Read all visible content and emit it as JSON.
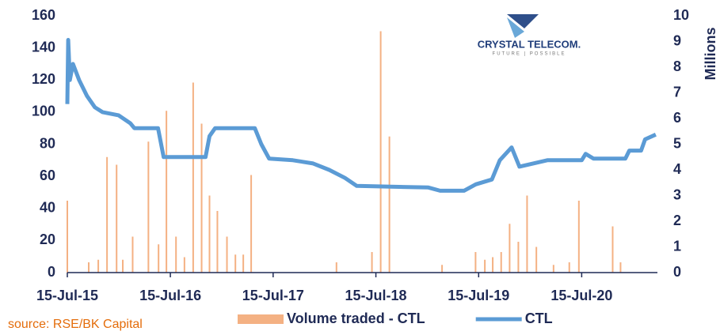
{
  "chart_data": {
    "type": "bar-line",
    "logo": {
      "name": "CRYSTAL TELECOM.",
      "tagline": "FUTURE | POSSIBLE"
    },
    "source": "source: RSE/BK Capital",
    "y2_label": "Millions",
    "xlim": [
      "2015-07-15",
      "2021-04-10"
    ],
    "xticks": [
      {
        "value": "2015-07-15",
        "label": "15-Jul-15"
      },
      {
        "value": "2016-07-15",
        "label": "15-Jul-16"
      },
      {
        "value": "2017-07-15",
        "label": "15-Jul-17"
      },
      {
        "value": "2018-07-15",
        "label": "15-Jul-18"
      },
      {
        "value": "2019-07-15",
        "label": "15-Jul-19"
      },
      {
        "value": "2020-07-15",
        "label": "15-Jul-20"
      }
    ],
    "ylim": [
      0,
      160
    ],
    "yticks": [
      0,
      20,
      40,
      60,
      80,
      100,
      120,
      140,
      160
    ],
    "y2lim": [
      0,
      10
    ],
    "y2ticks": [
      0,
      1,
      2,
      3,
      4,
      5,
      6,
      7,
      8,
      9,
      10
    ],
    "series": [
      {
        "name": "Volume traded - CTL",
        "type": "bar",
        "axis": "y2",
        "color": "#f4b183",
        "x": [
          "2015-07-15",
          "2015-09-29",
          "2015-11-02",
          "2015-12-03",
          "2016-01-06",
          "2016-01-28",
          "2016-03-03",
          "2016-04-28",
          "2016-06-03",
          "2016-07-01",
          "2016-08-04",
          "2016-09-03",
          "2016-10-04",
          "2016-11-03",
          "2016-12-01",
          "2016-12-29",
          "2017-02-01",
          "2017-03-03",
          "2017-03-31",
          "2017-04-28",
          "2018-02-25",
          "2018-07-01",
          "2018-08-01",
          "2018-09-01",
          "2019-03-07",
          "2019-07-04",
          "2019-08-06",
          "2019-09-03",
          "2019-10-03",
          "2019-11-02",
          "2019-12-03",
          "2020-01-03",
          "2020-02-05",
          "2020-04-06",
          "2020-06-01",
          "2020-07-05",
          "2020-11-02",
          "2020-11-30"
        ],
        "values": [
          2.8,
          0.4,
          0.5,
          4.5,
          4.2,
          0.5,
          1.4,
          5.1,
          1.1,
          6.3,
          1.4,
          0.6,
          7.4,
          5.8,
          3.0,
          2.4,
          1.4,
          0.7,
          0.7,
          3.8,
          0.4,
          0.8,
          9.4,
          5.3,
          0.3,
          0.8,
          0.5,
          0.6,
          0.8,
          1.9,
          1.2,
          3.0,
          1.0,
          0.3,
          0.4,
          2.8,
          1.8,
          0.4
        ]
      },
      {
        "name": "CTL",
        "type": "line",
        "color": "#5b9bd5",
        "x": [
          "2015-07-15",
          "2015-07-18",
          "2015-07-24",
          "2015-08-04",
          "2015-08-26",
          "2015-09-23",
          "2015-10-21",
          "2015-11-17",
          "2016-01-13",
          "2016-02-24",
          "2016-03-09",
          "2016-06-01",
          "2016-06-21",
          "2016-11-17",
          "2016-12-01",
          "2016-12-21",
          "2017-05-11",
          "2017-06-03",
          "2017-07-01",
          "2017-09-23",
          "2017-12-04",
          "2018-01-30",
          "2018-03-27",
          "2018-05-08",
          "2019-01-17",
          "2019-02-28",
          "2019-05-24",
          "2019-07-05",
          "2019-08-31",
          "2019-09-28",
          "2019-11-09",
          "2019-12-07",
          "2020-03-15",
          "2020-07-15",
          "2020-07-29",
          "2020-08-26",
          "2020-12-17",
          "2020-12-31",
          "2021-02-11",
          "2021-02-25",
          "2021-04-04"
        ],
        "values": [
          105,
          145,
          120,
          130,
          120,
          110,
          103,
          100,
          98,
          93,
          90,
          90,
          72,
          72,
          85,
          90,
          90,
          80,
          71,
          70,
          68,
          64,
          59,
          54,
          53,
          51,
          51,
          55,
          58,
          70,
          78,
          66,
          70,
          70,
          74,
          71,
          71,
          76,
          76,
          83,
          86
        ]
      }
    ]
  }
}
